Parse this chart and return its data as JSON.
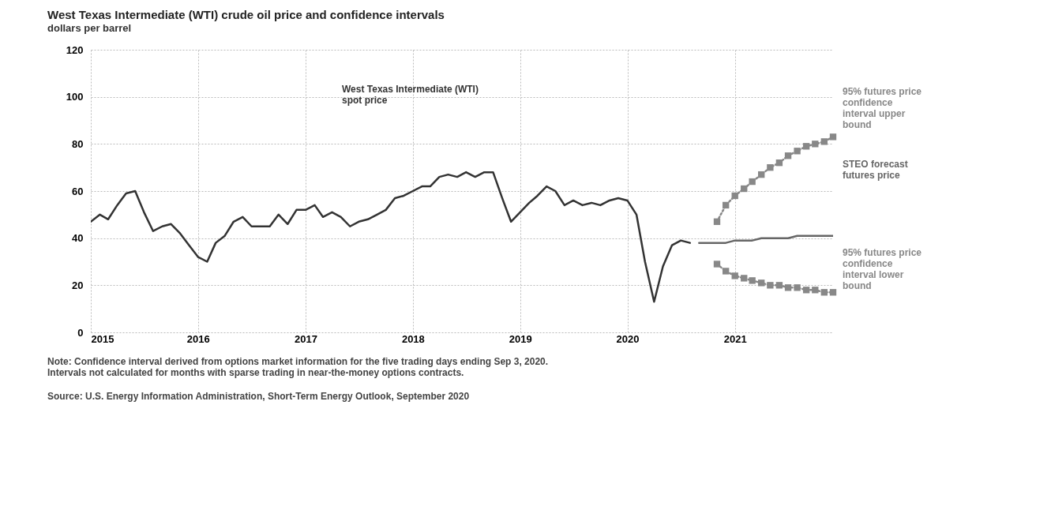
{
  "chart_data": {
    "type": "line",
    "title": "West Texas Intermediate (WTI) crude oil price and confidence intervals",
    "subtitle": "dollars per barrel",
    "xlim": [
      "2015-01",
      "2021-12"
    ],
    "xticks": [
      "2015",
      "2016",
      "2017",
      "2018",
      "2019",
      "2020",
      "2021"
    ],
    "ylim": [
      0,
      120
    ],
    "yticks": [
      0,
      20,
      40,
      60,
      80,
      100,
      120
    ],
    "grid": true,
    "series": [
      {
        "name": "West Texas Intermediate (WTI) spot price",
        "color": "#333333",
        "line_style": "solid",
        "x": [
          "2015-01",
          "2015-02",
          "2015-03",
          "2015-04",
          "2015-05",
          "2015-06",
          "2015-07",
          "2015-08",
          "2015-09",
          "2015-10",
          "2015-11",
          "2015-12",
          "2016-01",
          "2016-02",
          "2016-03",
          "2016-04",
          "2016-05",
          "2016-06",
          "2016-07",
          "2016-08",
          "2016-09",
          "2016-10",
          "2016-11",
          "2016-12",
          "2017-01",
          "2017-02",
          "2017-03",
          "2017-04",
          "2017-05",
          "2017-06",
          "2017-07",
          "2017-08",
          "2017-09",
          "2017-10",
          "2017-11",
          "2017-12",
          "2018-01",
          "2018-02",
          "2018-03",
          "2018-04",
          "2018-05",
          "2018-06",
          "2018-07",
          "2018-08",
          "2018-09",
          "2018-10",
          "2018-11",
          "2018-12",
          "2019-01",
          "2019-02",
          "2019-03",
          "2019-04",
          "2019-05",
          "2019-06",
          "2019-07",
          "2019-08",
          "2019-09",
          "2019-10",
          "2019-11",
          "2019-12",
          "2020-01",
          "2020-02",
          "2020-03",
          "2020-04",
          "2020-05",
          "2020-06",
          "2020-07",
          "2020-08"
        ],
        "values": [
          47,
          50,
          48,
          54,
          59,
          60,
          51,
          43,
          45,
          46,
          42,
          37,
          32,
          30,
          38,
          41,
          47,
          49,
          45,
          45,
          45,
          50,
          46,
          52,
          52,
          54,
          49,
          51,
          49,
          45,
          47,
          48,
          50,
          52,
          57,
          58,
          60,
          62,
          62,
          66,
          67,
          66,
          68,
          66,
          68,
          68,
          57,
          47,
          51,
          55,
          58,
          62,
          60,
          54,
          56,
          54,
          55,
          54,
          56,
          57,
          56,
          50,
          30,
          13,
          28,
          37,
          39,
          38
        ]
      },
      {
        "name": "95% futures price confidence interval upper bound",
        "color": "#888888",
        "line_style": "dotted",
        "marker": "square",
        "x": [
          "2020-11",
          "2020-12",
          "2021-01",
          "2021-02",
          "2021-03",
          "2021-04",
          "2021-05",
          "2021-06",
          "2021-07",
          "2021-08",
          "2021-09",
          "2021-10",
          "2021-11",
          "2021-12"
        ],
        "values": [
          47,
          54,
          58,
          61,
          64,
          67,
          70,
          72,
          75,
          77,
          79,
          80,
          81,
          83
        ]
      },
      {
        "name": "STEO forecast futures price",
        "color": "#666666",
        "line_style": "solid",
        "x": [
          "2020-09",
          "2020-10",
          "2020-11",
          "2020-12",
          "2021-01",
          "2021-02",
          "2021-03",
          "2021-04",
          "2021-05",
          "2021-06",
          "2021-07",
          "2021-08",
          "2021-09",
          "2021-10",
          "2021-11",
          "2021-12"
        ],
        "values": [
          38,
          38,
          38,
          38,
          39,
          39,
          39,
          40,
          40,
          40,
          40,
          41,
          41,
          41,
          41,
          41
        ]
      },
      {
        "name": "95% futures price confidence interval lower bound",
        "color": "#888888",
        "line_style": "dotted",
        "marker": "square",
        "x": [
          "2020-11",
          "2020-12",
          "2021-01",
          "2021-02",
          "2021-03",
          "2021-04",
          "2021-05",
          "2021-06",
          "2021-07",
          "2021-08",
          "2021-09",
          "2021-10",
          "2021-11",
          "2021-12"
        ],
        "values": [
          29,
          26,
          24,
          23,
          22,
          21,
          20,
          20,
          19,
          19,
          18,
          18,
          17,
          17
        ]
      }
    ],
    "annotations": [
      "Note: Confidence interval derived from options market information for the five trading days ending Sep 3, 2020. Intervals not calculated for months with sparse trading in near-the-money options contracts.",
      "Source: U.S. Energy Information Administration, Short-Term Energy Outlook, September 2020"
    ]
  }
}
